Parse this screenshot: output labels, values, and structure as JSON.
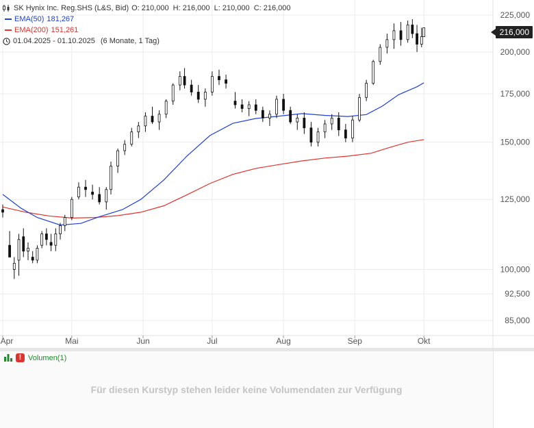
{
  "legend": {
    "title": "SK Hynix Inc. Reg.SHS (L&S, Bid)",
    "ohlc": "O: 210,000  H: 216,000  L: 210,000  C: 216,000",
    "ema50_label": "EMA(50)",
    "ema50_value": "181,267",
    "ema200_label": "EMA(200)",
    "ema200_value": "151,261",
    "range": "01.04.2025 - 01.10.2025",
    "range_detail": "(6 Monate, 1 Tag)"
  },
  "last_price": "216,000",
  "volume": {
    "label": "Volumen(1)",
    "message": "Für diesen Kurstyp stehen leider keine Volumendaten zur Verfügung"
  },
  "colors": {
    "ema50": "#1f3fd6",
    "ema200": "#e0322d",
    "candle": "#111111",
    "grid": "#ececec"
  },
  "chart_data": {
    "type": "candlestick",
    "y_ticks": [
      {
        "v": 225000,
        "label": "225,000"
      },
      {
        "v": 200000,
        "label": "200,000"
      },
      {
        "v": 175000,
        "label": "175,000"
      },
      {
        "v": 150000,
        "label": "150,000"
      },
      {
        "v": 125000,
        "label": "125,000"
      },
      {
        "v": 100000,
        "label": "100,000"
      },
      {
        "v": 92500,
        "label": "92,500"
      },
      {
        "v": 85000,
        "label": "85,000"
      }
    ],
    "x_ticks": [
      {
        "d": 0,
        "label": "Apr"
      },
      {
        "d": 30,
        "label": "Mai"
      },
      {
        "d": 61,
        "label": "Jun"
      },
      {
        "d": 91,
        "label": "Jul"
      },
      {
        "d": 122,
        "label": "Aug"
      },
      {
        "d": 153,
        "label": "Sep"
      },
      {
        "d": 183,
        "label": "Okt"
      }
    ],
    "ylim": [
      81000,
      236000
    ],
    "xlim": [
      0,
      213
    ],
    "scale": "log",
    "candles": [
      [
        121000,
        123000,
        118000,
        120000
      ],
      [
        108000,
        113000,
        104000,
        104000
      ],
      [
        100000,
        104000,
        97000,
        102000
      ],
      [
        103000,
        112000,
        98000,
        110000
      ],
      [
        111000,
        114000,
        104000,
        106000
      ],
      [
        106000,
        109000,
        103000,
        107000
      ],
      [
        104000,
        106000,
        102000,
        103000
      ],
      [
        103000,
        108000,
        102000,
        107000
      ],
      [
        108000,
        113000,
        107000,
        112000
      ],
      [
        112000,
        114000,
        108000,
        110000
      ],
      [
        109000,
        112000,
        106000,
        108000
      ],
      [
        108000,
        114000,
        106000,
        112000
      ],
      [
        112000,
        116000,
        110000,
        115000
      ],
      [
        115000,
        119000,
        113000,
        118000
      ],
      [
        118000,
        126000,
        117000,
        125000
      ],
      [
        126000,
        132000,
        125000,
        130000
      ],
      [
        130000,
        133000,
        126000,
        129000
      ],
      [
        128000,
        131000,
        125000,
        127000
      ],
      [
        127000,
        130000,
        123000,
        124000
      ],
      [
        124000,
        130000,
        121000,
        129000
      ],
      [
        129000,
        141000,
        127000,
        139000
      ],
      [
        139000,
        147000,
        136000,
        146000
      ],
      [
        146000,
        151000,
        144000,
        149000
      ],
      [
        149000,
        157000,
        148000,
        155000
      ],
      [
        155000,
        160000,
        152000,
        158000
      ],
      [
        158000,
        165000,
        155000,
        163000
      ],
      [
        163000,
        168000,
        159000,
        160000
      ],
      [
        160000,
        166000,
        156000,
        164000
      ],
      [
        164000,
        172000,
        162000,
        171000
      ],
      [
        171000,
        181000,
        169000,
        180000
      ],
      [
        180000,
        188000,
        177000,
        185000
      ],
      [
        185000,
        190000,
        178000,
        180000
      ],
      [
        180000,
        183000,
        174000,
        176000
      ],
      [
        176000,
        180000,
        170000,
        172000
      ],
      [
        172000,
        178000,
        168000,
        176000
      ],
      [
        176000,
        188000,
        174000,
        185000
      ],
      [
        185000,
        189000,
        180000,
        183000
      ],
      [
        183000,
        186000,
        178000,
        181000
      ],
      [
        171000,
        176000,
        167000,
        169000
      ],
      [
        169000,
        172000,
        165000,
        167000
      ],
      [
        167000,
        171000,
        163000,
        169000
      ],
      [
        169000,
        172000,
        164000,
        166000
      ],
      [
        166000,
        168000,
        160000,
        162000
      ],
      [
        162000,
        166000,
        158000,
        164000
      ],
      [
        164000,
        174000,
        162000,
        172000
      ],
      [
        172000,
        175000,
        164000,
        166000
      ],
      [
        166000,
        168000,
        159000,
        160000
      ],
      [
        160000,
        164000,
        156000,
        162000
      ],
      [
        162000,
        165000,
        154000,
        157000
      ],
      [
        157000,
        160000,
        148000,
        150000
      ],
      [
        150000,
        157000,
        148000,
        155000
      ],
      [
        155000,
        161000,
        152000,
        159000
      ],
      [
        159000,
        164000,
        156000,
        162000
      ],
      [
        162000,
        165000,
        153000,
        156000
      ],
      [
        156000,
        159000,
        150000,
        152000
      ],
      [
        152000,
        163000,
        150000,
        161000
      ],
      [
        161000,
        175000,
        160000,
        173000
      ],
      [
        173000,
        183000,
        171000,
        181000
      ],
      [
        181000,
        195000,
        180000,
        194000
      ],
      [
        194000,
        205000,
        192000,
        203000
      ],
      [
        203000,
        212000,
        199000,
        208000
      ],
      [
        208000,
        219000,
        202000,
        214000
      ],
      [
        214000,
        220000,
        204000,
        208000
      ],
      [
        208000,
        221000,
        206000,
        218000
      ],
      [
        218000,
        222000,
        209000,
        212000
      ],
      [
        212000,
        218000,
        200000,
        205000
      ],
      [
        205000,
        216000,
        203000,
        210000
      ],
      [
        210000,
        216000,
        210000,
        216000
      ]
    ],
    "candle_days": [
      0,
      3,
      5,
      7,
      9,
      11,
      13,
      15,
      17,
      19,
      21,
      23,
      25,
      27,
      30,
      33,
      36,
      39,
      42,
      45,
      47,
      50,
      53,
      56,
      59,
      62,
      65,
      68,
      71,
      74,
      77,
      79,
      82,
      85,
      88,
      91,
      94,
      97,
      101,
      104,
      107,
      110,
      113,
      116,
      119,
      122,
      125,
      128,
      131,
      134,
      137,
      140,
      143,
      146,
      149,
      152,
      155,
      158,
      161,
      164,
      167,
      170,
      173,
      176,
      178,
      180,
      182,
      183
    ],
    "series": [
      {
        "name": "EMA(50)",
        "points": [
          [
            0,
            127000
          ],
          [
            8,
            121500
          ],
          [
            15,
            118000
          ],
          [
            25,
            115200
          ],
          [
            34,
            115800
          ],
          [
            42,
            118300
          ],
          [
            52,
            121000
          ],
          [
            60,
            125000
          ],
          [
            70,
            133000
          ],
          [
            80,
            143500
          ],
          [
            90,
            153200
          ],
          [
            100,
            159300
          ],
          [
            110,
            161800
          ],
          [
            120,
            163000
          ],
          [
            130,
            164300
          ],
          [
            140,
            163400
          ],
          [
            150,
            162800
          ],
          [
            158,
            163800
          ],
          [
            165,
            168300
          ],
          [
            172,
            174500
          ],
          [
            180,
            179000
          ],
          [
            183,
            181267
          ]
        ]
      },
      {
        "name": "EMA(200)",
        "points": [
          [
            0,
            122000
          ],
          [
            10,
            120000
          ],
          [
            20,
            118600
          ],
          [
            30,
            117800
          ],
          [
            40,
            118000
          ],
          [
            50,
            118700
          ],
          [
            60,
            120000
          ],
          [
            70,
            122500
          ],
          [
            80,
            126800
          ],
          [
            90,
            131500
          ],
          [
            100,
            135400
          ],
          [
            110,
            138000
          ],
          [
            120,
            139700
          ],
          [
            130,
            141300
          ],
          [
            140,
            142600
          ],
          [
            150,
            143500
          ],
          [
            160,
            144800
          ],
          [
            168,
            147500
          ],
          [
            176,
            150000
          ],
          [
            183,
            151261
          ]
        ]
      }
    ]
  }
}
